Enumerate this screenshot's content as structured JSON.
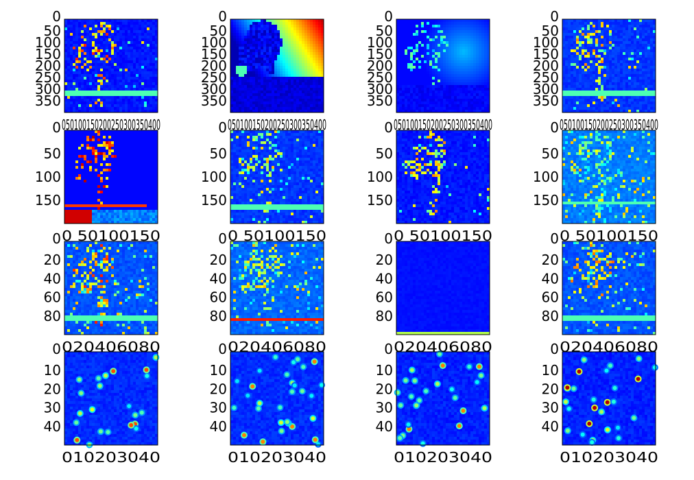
{
  "chart_data": {
    "type": "heatmap",
    "colormap": "jet",
    "grid": false,
    "rows": [
      {
        "image_size": [
          400,
          400
        ],
        "yticks": [
          "0",
          "50",
          "100",
          "150",
          "200",
          "250",
          "300",
          "350"
        ],
        "xticks": [
          "0",
          "50",
          "100",
          "150",
          "200",
          "250",
          "300",
          "350",
          "400"
        ],
        "xtick_text": "050100150200250300350400",
        "panels": [
          {
            "pattern": "edges",
            "seed": 11,
            "base": 0.12,
            "density": 0.035,
            "mask": "palm",
            "bright": 0.55,
            "line": 0.79
          },
          {
            "pattern": "gradient",
            "seed": 12,
            "base": 0.05
          },
          {
            "pattern": "glow",
            "seed": 13,
            "base": 0.13
          },
          {
            "pattern": "edges",
            "seed": 14,
            "base": 0.15,
            "density": 0.03,
            "mask": "palm",
            "bright": 0.45,
            "line": 0.79
          }
        ]
      },
      {
        "image_size": [
          200,
          200
        ],
        "yticks": [
          "0",
          "50",
          "100",
          "150"
        ],
        "xticks": [
          "0",
          "50",
          "100",
          "150"
        ],
        "xtick_text": "0 50100150",
        "panels": [
          {
            "pattern": "redpalm",
            "seed": 21,
            "base": 0.13
          },
          {
            "pattern": "edges",
            "seed": 22,
            "base": 0.15,
            "density": 0.06,
            "mask": "palm",
            "bright": 0.4,
            "line": 0.82
          },
          {
            "pattern": "edges",
            "seed": 23,
            "base": 0.12,
            "density": 0.03,
            "mask": "palm",
            "bright": 0.45,
            "line": -1
          },
          {
            "pattern": "edges",
            "seed": 24,
            "base": 0.22,
            "density": 0.12,
            "mask": "palm",
            "bright": 0.35,
            "line": 0.78
          }
        ]
      },
      {
        "image_size": [
          100,
          100
        ],
        "yticks": [
          "0",
          "20",
          "40",
          "60",
          "80"
        ],
        "xticks": [
          "0",
          "20",
          "40",
          "60",
          "80"
        ],
        "xtick_text": "020406080",
        "panels": [
          {
            "pattern": "edges",
            "seed": 31,
            "base": 0.18,
            "density": 0.09,
            "mask": "palm",
            "bright": 0.55,
            "line": 0.82
          },
          {
            "pattern": "edges",
            "seed": 32,
            "base": 0.2,
            "density": 0.07,
            "mask": "palm",
            "bright": 0.4,
            "line": 0.83,
            "line_hot": true
          },
          {
            "pattern": "flat",
            "seed": 33,
            "base": 0.13,
            "line": 0.98
          },
          {
            "pattern": "edges",
            "seed": 34,
            "base": 0.18,
            "density": 0.08,
            "mask": "palm",
            "bright": 0.5,
            "line": 0.82
          }
        ]
      },
      {
        "image_size": [
          50,
          50
        ],
        "yticks": [
          "0",
          "10",
          "20",
          "30",
          "40"
        ],
        "xticks": [
          "0",
          "10",
          "20",
          "30",
          "40"
        ],
        "xtick_text": "010203040",
        "panels": [
          {
            "pattern": "blobs",
            "seed": 41,
            "base": 0.14,
            "count": 22,
            "hot": 0.55
          },
          {
            "pattern": "blobs",
            "seed": 42,
            "base": 0.14,
            "count": 30,
            "hot": 0.5
          },
          {
            "pattern": "blobs",
            "seed": 43,
            "base": 0.13,
            "count": 26,
            "hot": 0.5
          },
          {
            "pattern": "blobs",
            "seed": 44,
            "base": 0.13,
            "count": 28,
            "hot": 0.7
          }
        ]
      }
    ]
  }
}
